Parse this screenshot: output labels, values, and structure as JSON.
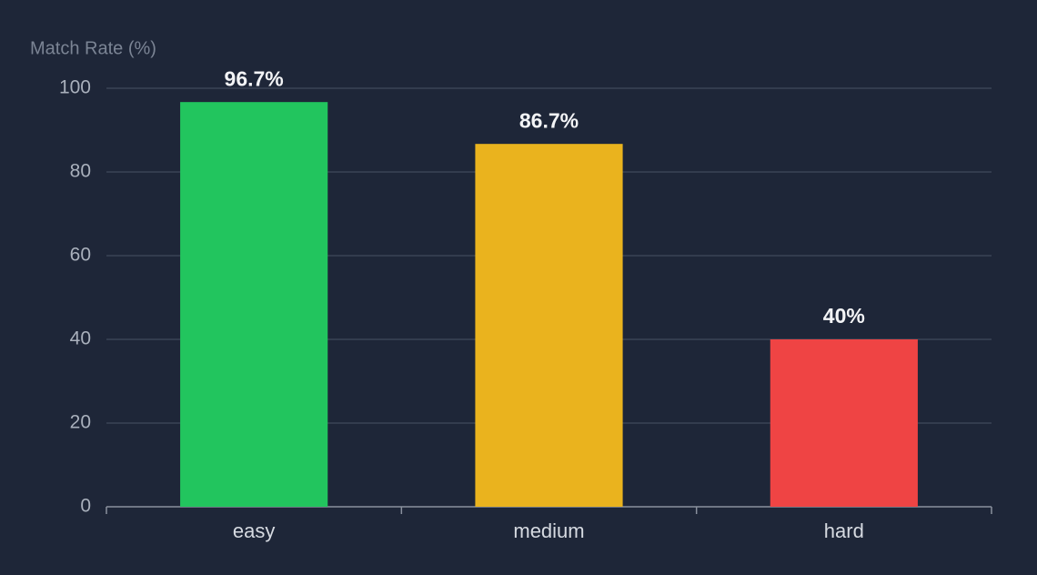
{
  "chart_data": {
    "type": "bar",
    "y_label": "Match Rate (%)",
    "categories": [
      "easy",
      "medium",
      "hard"
    ],
    "values": [
      96.7,
      86.7,
      40
    ],
    "value_labels": [
      "96.7%",
      "86.7%",
      "40%"
    ],
    "colors": [
      "#22c55e",
      "#eab31e",
      "#ef4444"
    ],
    "ylim": [
      0,
      100
    ],
    "yticks": [
      0,
      20,
      40,
      60,
      80,
      100
    ],
    "grid": true
  }
}
